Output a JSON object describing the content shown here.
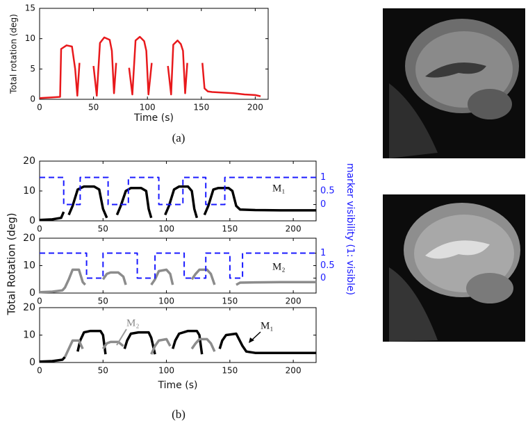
{
  "captions": [
    "(a)",
    "(b)"
  ],
  "chart_data": [
    {
      "type": "line",
      "ylabel": "Total rotation (deg)",
      "xlabel": "Time (s)",
      "xlim": [
        0,
        212
      ],
      "xticks": [
        0,
        50,
        100,
        150,
        200
      ],
      "ylim": [
        0,
        15
      ],
      "yticks": [
        0,
        5,
        10,
        15
      ],
      "series": [
        {
          "color": "#e8191c",
          "x": [
            0,
            10,
            19,
            20,
            25,
            30,
            33,
            35,
            37,
            null,
            50,
            53,
            56,
            60,
            65,
            67,
            69,
            71,
            null,
            83,
            86,
            89,
            93,
            97,
            99,
            101,
            104,
            null,
            119,
            122,
            124,
            128,
            131,
            133,
            135,
            137,
            null,
            151,
            153,
            156,
            160,
            170,
            180,
            190,
            200,
            205
          ],
          "values": [
            0.2,
            0.3,
            0.4,
            8.3,
            8.9,
            8.7,
            5,
            0.6,
            6,
            null,
            5.5,
            0.6,
            9.3,
            10.2,
            9.8,
            8,
            1,
            6,
            null,
            5.2,
            0.8,
            9.7,
            10.3,
            9.6,
            8,
            0.8,
            6,
            null,
            5.5,
            0.8,
            9,
            9.7,
            9.1,
            8,
            1,
            6,
            null,
            6,
            1.8,
            1.3,
            1.2,
            1.1,
            1,
            0.8,
            0.7,
            0.5
          ]
        }
      ]
    },
    {
      "type": "line",
      "xlim": [
        0,
        218
      ],
      "xticks": [
        0,
        50,
        100,
        150,
        200
      ],
      "ylim": [
        0,
        20
      ],
      "yticks": [
        0,
        10,
        20
      ],
      "y2lim": [
        -0.6,
        1.6
      ],
      "y2ticks": [
        0,
        0.5,
        1
      ],
      "annotations": [
        "M₁"
      ],
      "series": [
        {
          "color": "#000000",
          "x": [
            0,
            10,
            17,
            19,
            null,
            23,
            26,
            30,
            35,
            43,
            47,
            50,
            53,
            null,
            61,
            64,
            68,
            72,
            80,
            84,
            86,
            88,
            null,
            99,
            102,
            106,
            110,
            117,
            120,
            122,
            124,
            null,
            130,
            133,
            137,
            141,
            149,
            152,
            155,
            158,
            170,
            190,
            218
          ],
          "values": [
            0.3,
            0.5,
            1,
            3,
            null,
            2,
            5,
            10.5,
            11.5,
            11.5,
            10.5,
            4,
            1,
            null,
            2,
            5,
            10,
            11,
            11,
            10,
            4,
            1,
            null,
            2,
            5,
            10.5,
            11.5,
            11.5,
            10,
            4,
            1,
            null,
            2,
            5,
            10.5,
            11,
            11,
            10,
            5,
            3.8,
            3.6,
            3.5,
            3.5
          ]
        },
        {
          "color": "#1a1aff",
          "axis": "y2",
          "dashed": true,
          "x": [
            0,
            19,
            19,
            32,
            32,
            54,
            54,
            70,
            70,
            94,
            94,
            113,
            113,
            131,
            131,
            146,
            146,
            218
          ],
          "values": [
            1,
            1,
            0,
            0,
            1,
            1,
            0,
            0,
            1,
            1,
            0,
            0,
            1,
            1,
            0,
            0,
            1,
            1
          ]
        }
      ]
    },
    {
      "type": "line",
      "ylabel": "Total Rotation (deg)",
      "y2label": "marker visibility (1: visible)",
      "xlim": [
        0,
        218
      ],
      "xticks": [
        0,
        50,
        100,
        150,
        200
      ],
      "ylim": [
        0,
        20
      ],
      "yticks": [
        0,
        10,
        20
      ],
      "y2lim": [
        -0.6,
        1.6
      ],
      "y2ticks": [
        0,
        0.5,
        1
      ],
      "annotations": [
        "M₂"
      ],
      "series": [
        {
          "color": "#8c8c8c",
          "x": [
            0,
            10,
            18,
            20,
            23,
            26,
            31,
            34,
            36,
            null,
            50,
            53,
            56,
            62,
            66,
            68,
            null,
            88,
            91,
            94,
            100,
            103,
            105,
            null,
            120,
            123,
            126,
            132,
            135,
            138,
            null,
            155,
            158,
            170,
            190,
            218
          ],
          "values": [
            0.3,
            0.5,
            1,
            2,
            5,
            8.5,
            8.5,
            4,
            3,
            null,
            5,
            7,
            7.5,
            7.5,
            6,
            3,
            null,
            3,
            5,
            8,
            8.5,
            7,
            3,
            null,
            5,
            7,
            8.5,
            8.5,
            7,
            3,
            null,
            3,
            3.8,
            3.9,
            4,
            4
          ]
        },
        {
          "color": "#1a1aff",
          "axis": "y2",
          "dashed": true,
          "x": [
            0,
            37,
            37,
            50,
            50,
            77,
            77,
            91,
            91,
            114,
            114,
            131,
            131,
            150,
            150,
            160,
            160,
            218
          ],
          "values": [
            1,
            1,
            0,
            0,
            1,
            1,
            0,
            0,
            1,
            1,
            0,
            0,
            1,
            1,
            0,
            0,
            1,
            1
          ]
        }
      ]
    },
    {
      "type": "line",
      "xlabel": "Time (s)",
      "xlim": [
        0,
        218
      ],
      "xticks": [
        0,
        50,
        100,
        150,
        200
      ],
      "ylim": [
        0,
        20
      ],
      "yticks": [
        0,
        10,
        20
      ],
      "annotations": [
        "M₂",
        "M₁"
      ],
      "series": [
        {
          "color": "#000000",
          "x": [
            0,
            10,
            18,
            20,
            null,
            30,
            32,
            35,
            40,
            48,
            50,
            52,
            null,
            67,
            69,
            72,
            78,
            86,
            88,
            91,
            null,
            105,
            107,
            110,
            117,
            124,
            126,
            128,
            null,
            142,
            144,
            147,
            155,
            160,
            163,
            170,
            190,
            218
          ],
          "values": [
            0.3,
            0.5,
            1,
            2,
            null,
            4,
            8,
            11,
            11.5,
            11.5,
            10,
            3,
            null,
            5,
            8,
            10.5,
            11,
            11,
            9,
            3,
            null,
            5,
            8,
            10.5,
            11.5,
            11.5,
            10,
            3,
            null,
            5,
            8,
            10,
            10.5,
            6,
            4,
            3.5,
            3.5,
            3.5
          ]
        },
        {
          "color": "#8c8c8c",
          "x": [
            20,
            23,
            26,
            31,
            34,
            null,
            50,
            53,
            56,
            62,
            66,
            null,
            88,
            91,
            94,
            100,
            103,
            null,
            120,
            123,
            126,
            132,
            135,
            138
          ],
          "values": [
            2,
            5,
            8,
            8,
            5,
            null,
            5,
            7,
            7.5,
            7.5,
            6,
            null,
            3,
            6,
            8,
            8.5,
            6,
            null,
            5,
            7,
            8.5,
            8.5,
            7,
            4
          ]
        }
      ]
    }
  ]
}
